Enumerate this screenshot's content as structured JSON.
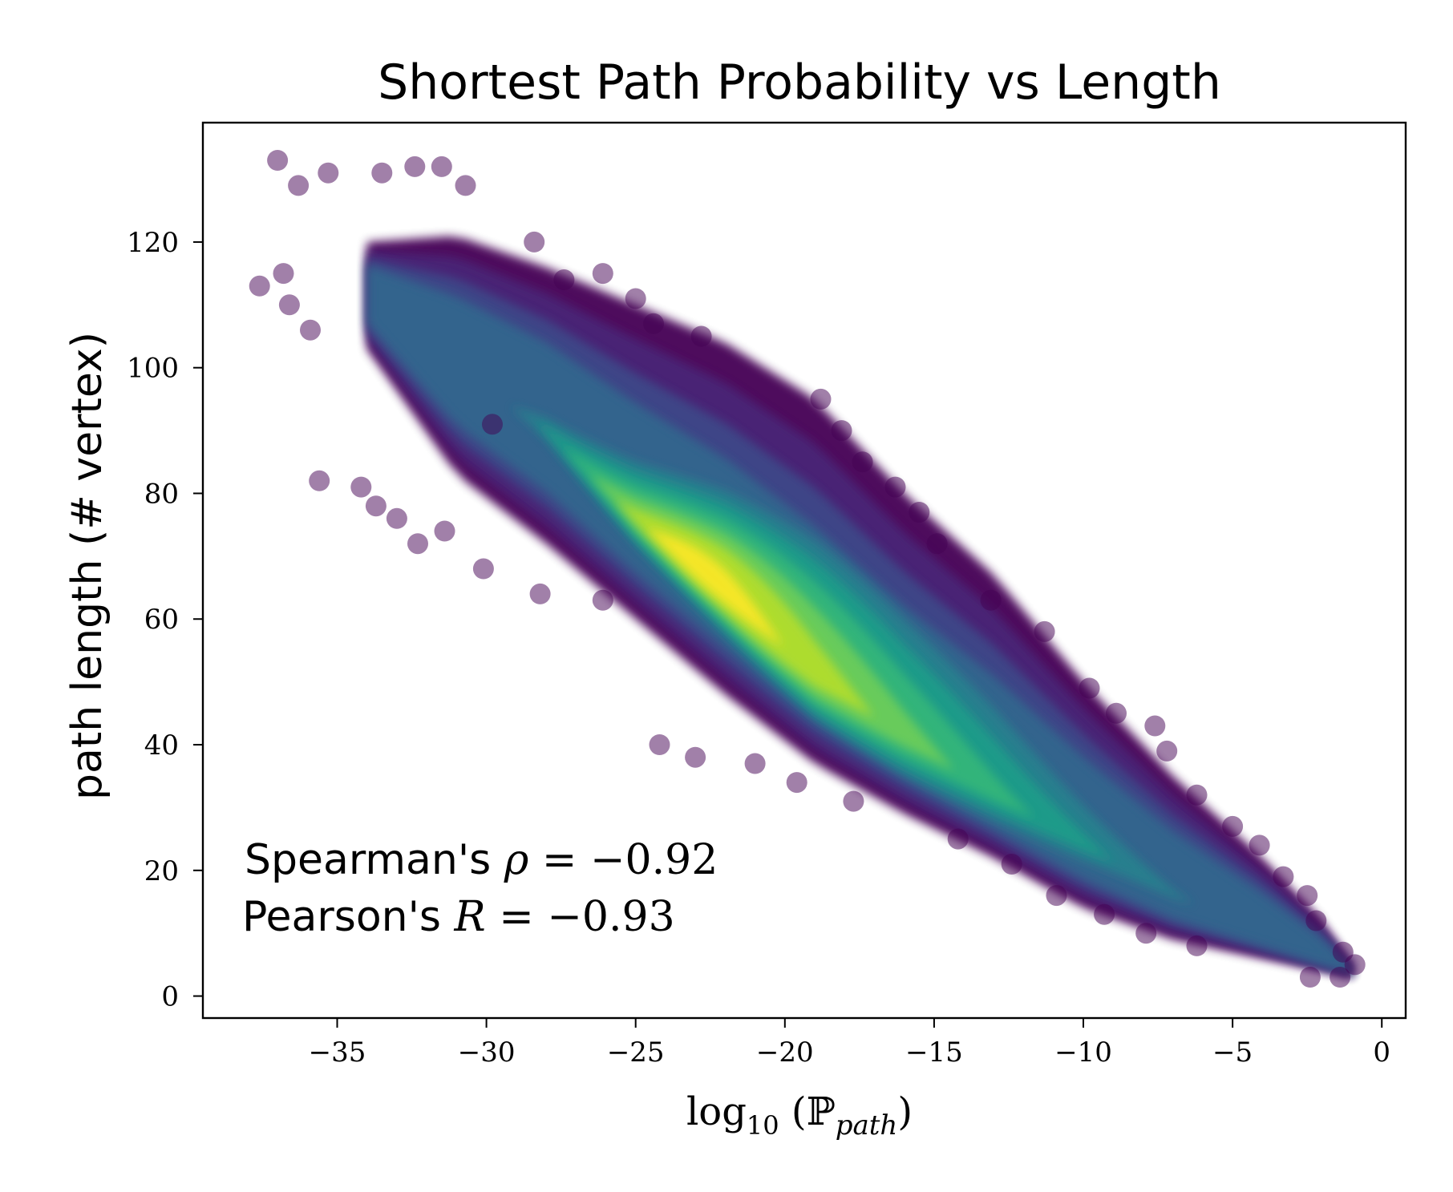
{
  "chart_data": {
    "type": "scatter",
    "title": "Shortest Path Probability vs Length",
    "xlabel": {
      "prefix": "log",
      "subscript": "10",
      "symbol": "ℙ",
      "symbol_subscript": "path"
    },
    "ylabel": "path length (# vertex)",
    "xlim": [
      -39.5,
      0.8
    ],
    "ylim": [
      -3.5,
      139
    ],
    "x_ticks": [
      -35,
      -30,
      -25,
      -20,
      -15,
      -10,
      -5,
      0
    ],
    "x_tick_labels": [
      "−35",
      "−30",
      "−25",
      "−20",
      "−15",
      "−10",
      "−5",
      "0"
    ],
    "y_ticks": [
      0,
      20,
      40,
      60,
      80,
      100,
      120
    ],
    "y_tick_labels": [
      "0",
      "20",
      "40",
      "60",
      "80",
      "100",
      "120"
    ],
    "grid": false,
    "colormap": "viridis",
    "colormap_stops": [
      "#440154",
      "#482878",
      "#3e4a89",
      "#31688e",
      "#26828e",
      "#1f9e89",
      "#35b779",
      "#6ece58",
      "#b5de2b",
      "#fde725"
    ],
    "point_alpha": 0.5,
    "density": {
      "center": [
        -23.5,
        70
      ],
      "ridge": [
        [
          -34,
          112
        ],
        [
          -31,
          100
        ],
        [
          -28,
          90
        ],
        [
          -25,
          76
        ],
        [
          -22,
          64
        ],
        [
          -19,
          51
        ],
        [
          -16,
          41
        ],
        [
          -13,
          32
        ],
        [
          -10,
          24
        ],
        [
          -7,
          16
        ],
        [
          -4,
          10
        ],
        [
          -2,
          6
        ],
        [
          -1,
          4
        ]
      ],
      "upper_edge": [
        [
          -34,
          120
        ],
        [
          -31,
          121
        ],
        [
          -28,
          116
        ],
        [
          -25,
          110
        ],
        [
          -22,
          104
        ],
        [
          -19,
          95
        ],
        [
          -16,
          80
        ],
        [
          -13,
          67
        ],
        [
          -10,
          50
        ],
        [
          -7,
          35
        ],
        [
          -4,
          22
        ],
        [
          -2,
          12
        ],
        [
          -1,
          5
        ]
      ],
      "lower_edge": [
        [
          -34,
          103
        ],
        [
          -31,
          83
        ],
        [
          -28,
          72
        ],
        [
          -25,
          60
        ],
        [
          -22,
          48
        ],
        [
          -19,
          37
        ],
        [
          -16,
          29
        ],
        [
          -13,
          22
        ],
        [
          -10,
          14
        ],
        [
          -7,
          9
        ],
        [
          -4,
          6
        ],
        [
          -2,
          4
        ],
        [
          -1,
          3
        ]
      ]
    },
    "outliers": [
      [
        -37.0,
        133
      ],
      [
        -36.3,
        129
      ],
      [
        -35.3,
        131
      ],
      [
        -33.5,
        131
      ],
      [
        -31.5,
        132
      ],
      [
        -32.4,
        132
      ],
      [
        -30.7,
        129
      ],
      [
        -37.6,
        113
      ],
      [
        -36.8,
        115
      ],
      [
        -36.6,
        110
      ],
      [
        -35.9,
        106
      ],
      [
        -35.6,
        82
      ],
      [
        -34.2,
        81
      ],
      [
        -33.7,
        78
      ],
      [
        -33.0,
        76
      ],
      [
        -32.3,
        72
      ],
      [
        -28.4,
        120
      ],
      [
        -27.4,
        114
      ],
      [
        -26.1,
        115
      ],
      [
        -25.0,
        111
      ],
      [
        -24.4,
        107
      ],
      [
        -22.8,
        105
      ],
      [
        -18.8,
        95
      ],
      [
        -18.1,
        90
      ],
      [
        -17.4,
        85
      ],
      [
        -16.3,
        81
      ],
      [
        -15.5,
        77
      ],
      [
        -14.9,
        72
      ],
      [
        -13.1,
        63
      ],
      [
        -11.3,
        58
      ],
      [
        -9.8,
        49
      ],
      [
        -8.9,
        45
      ],
      [
        -7.6,
        43
      ],
      [
        -7.2,
        39
      ],
      [
        -6.2,
        32
      ],
      [
        -5.0,
        27
      ],
      [
        -4.1,
        24
      ],
      [
        -3.3,
        19
      ],
      [
        -2.5,
        16
      ],
      [
        -2.2,
        12
      ],
      [
        -1.3,
        7
      ],
      [
        -0.9,
        5
      ],
      [
        -1.4,
        3
      ],
      [
        -2.4,
        3
      ],
      [
        -24.2,
        40
      ],
      [
        -23.0,
        38
      ],
      [
        -21.0,
        37
      ],
      [
        -19.6,
        34
      ],
      [
        -17.7,
        31
      ],
      [
        -14.2,
        25
      ],
      [
        -12.4,
        21
      ],
      [
        -10.9,
        16
      ],
      [
        -9.3,
        13
      ],
      [
        -7.9,
        10
      ],
      [
        -6.2,
        8
      ],
      [
        -28.2,
        64
      ],
      [
        -26.1,
        63
      ],
      [
        -30.1,
        68
      ],
      [
        -31.4,
        74
      ],
      [
        -29.8,
        91
      ]
    ],
    "annotations": {
      "line1_prefix": "Spearman's ",
      "line1_symbol": "ρ",
      "line1_value": " = −0.92",
      "line2_prefix": "Pearson's ",
      "line2_symbol": "R",
      "line2_value": " = −0.93"
    }
  }
}
